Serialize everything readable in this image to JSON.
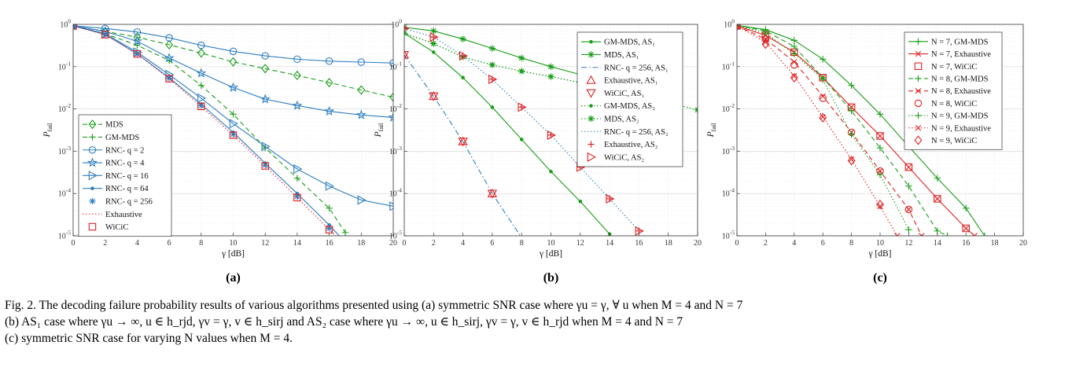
{
  "chart_data": [
    {
      "type": "line",
      "panel_label": "(a)",
      "xlabel": "γ [dB]",
      "ylabel": "P_fail",
      "xlim": [
        0,
        20
      ],
      "ylim": [
        1e-05,
        1
      ],
      "yscale": "log",
      "grid": true,
      "legend_position": "bottom-left",
      "xticks": [
        "0",
        "2",
        "4",
        "6",
        "8",
        "10",
        "12",
        "14",
        "16",
        "18",
        "20"
      ],
      "yticks": [
        "10^0",
        "10^-1",
        "10^-2",
        "10^-3",
        "10^-4",
        "10^-5"
      ],
      "series": [
        {
          "name": "MDS",
          "color": "#1a9e1a",
          "dash": "dashed",
          "marker": "diamond",
          "x": [
            0,
            2,
            4,
            6,
            8,
            10,
            12,
            14,
            16,
            18,
            20
          ],
          "y": [
            0.92,
            0.68,
            0.5,
            0.33,
            0.21,
            0.13,
            0.09,
            0.062,
            0.042,
            0.028,
            0.019
          ]
        },
        {
          "name": "GM-MDS",
          "color": "#1a9e1a",
          "dash": "dashed",
          "marker": "plus",
          "x": [
            0,
            2,
            4,
            6,
            8,
            10,
            12,
            14,
            16,
            17
          ],
          "y": [
            0.92,
            0.6,
            0.32,
            0.14,
            0.036,
            0.0075,
            0.0012,
            0.00023,
            4.5e-05,
            1.2e-05
          ]
        },
        {
          "name": "RNC- q = 2",
          "color": "#2f7fc1",
          "dash": "solid",
          "marker": "circle",
          "x": [
            0,
            2,
            4,
            6,
            8,
            10,
            12,
            14,
            16,
            18,
            20
          ],
          "y": [
            0.92,
            0.8,
            0.66,
            0.48,
            0.32,
            0.23,
            0.18,
            0.15,
            0.135,
            0.128,
            0.122
          ]
        },
        {
          "name": "RNC- q = 4",
          "color": "#2f7fc1",
          "dash": "solid",
          "marker": "star",
          "x": [
            0,
            2,
            4,
            6,
            8,
            10,
            12,
            14,
            16,
            18,
            20
          ],
          "y": [
            0.92,
            0.68,
            0.4,
            0.16,
            0.07,
            0.032,
            0.017,
            0.012,
            0.0088,
            0.0072,
            0.0063
          ]
        },
        {
          "name": "RNC- q = 16",
          "color": "#2f7fc1",
          "dash": "solid",
          "marker": "triangle-right",
          "x": [
            0,
            2,
            4,
            6,
            8,
            10,
            12,
            14,
            16,
            18,
            20
          ],
          "y": [
            0.92,
            0.6,
            0.22,
            0.065,
            0.018,
            0.0045,
            0.0013,
            0.00038,
            0.00015,
            7e-05,
            5e-05
          ]
        },
        {
          "name": "RNC- q = 64",
          "color": "#2f7fc1",
          "dash": "solid",
          "marker": "dot",
          "x": [
            0,
            2,
            4,
            6,
            8,
            10,
            12,
            14,
            16,
            17
          ],
          "y": [
            0.92,
            0.58,
            0.2,
            0.055,
            0.013,
            0.0028,
            0.00052,
            0.0001,
            1.8e-05,
            7e-06
          ]
        },
        {
          "name": "RNC- q = 256",
          "color": "#2f7fc1",
          "dash": "none",
          "marker": "asterisk",
          "x": [
            0,
            2,
            4,
            6,
            8,
            10,
            12,
            14,
            16
          ],
          "y": [
            0.92,
            0.57,
            0.2,
            0.053,
            0.012,
            0.0025,
            0.00047,
            8.5e-05,
            1.5e-05
          ]
        },
        {
          "name": "Exhaustive",
          "color": "#e02020",
          "dash": "dotted",
          "marker": "none",
          "x": [
            0,
            2,
            4,
            6,
            8,
            10,
            12,
            14,
            16,
            17
          ],
          "y": [
            0.92,
            0.57,
            0.2,
            0.052,
            0.0115,
            0.0024,
            0.00045,
            8e-05,
            1.4e-05,
            6e-06
          ]
        },
        {
          "name": "WiCiC",
          "color": "#e02020",
          "dash": "none",
          "marker": "square",
          "x": [
            0,
            2,
            4,
            6,
            8,
            10,
            12,
            14,
            16
          ],
          "y": [
            0.92,
            0.57,
            0.2,
            0.052,
            0.0115,
            0.0024,
            0.00045,
            8e-05,
            1.4e-05
          ]
        }
      ]
    },
    {
      "type": "line",
      "panel_label": "(b)",
      "xlabel": "γ [dB]",
      "ylabel": "P_fail",
      "xlim": [
        0,
        20
      ],
      "ylim": [
        1e-05,
        1
      ],
      "yscale": "log",
      "grid": true,
      "legend_position": "top-right",
      "xticks": [
        "0",
        "2",
        "4",
        "6",
        "8",
        "10",
        "12",
        "14",
        "16",
        "18",
        "20"
      ],
      "yticks": [
        "10^0",
        "10^-1",
        "10^-2",
        "10^-3",
        "10^-4",
        "10^-5"
      ],
      "series": [
        {
          "name": "GM-MDS, AS₁",
          "color": "#1a9e1a",
          "dash": "solid",
          "marker": "dot",
          "x": [
            0,
            2,
            4,
            6,
            8,
            10,
            12,
            14
          ],
          "y": [
            0.62,
            0.22,
            0.055,
            0.011,
            0.0019,
            0.00033,
            6.5e-05,
            1.1e-05
          ]
        },
        {
          "name": "MDS, AS₁",
          "color": "#1a9e1a",
          "dash": "solid",
          "marker": "asterisk",
          "x": [
            0,
            2,
            4,
            6,
            8,
            10,
            12,
            14,
            16
          ],
          "y": [
            0.85,
            0.7,
            0.45,
            0.27,
            0.16,
            0.1,
            0.065,
            0.045,
            0.032
          ]
        },
        {
          "name": "RNC- q = 256, AS₁",
          "color": "#2f7fc1",
          "dash": "dashdot",
          "marker": "none",
          "x": [
            0,
            2,
            4,
            6,
            7,
            8
          ],
          "y": [
            0.19,
            0.02,
            0.0017,
            0.0001,
            3e-05,
            9e-06
          ]
        },
        {
          "name": "Exhaustive, AS₁",
          "color": "#e02020",
          "dash": "none",
          "marker": "triangle-up",
          "x": [
            0,
            2,
            4,
            6
          ],
          "y": [
            0.19,
            0.02,
            0.0017,
            0.0001
          ]
        },
        {
          "name": "WiCiC, AS₁",
          "color": "#e02020",
          "dash": "none",
          "marker": "triangle-down",
          "x": [
            0,
            2,
            4,
            6
          ],
          "y": [
            0.19,
            0.02,
            0.0017,
            0.0001
          ]
        },
        {
          "name": "GM-MDS, AS₂",
          "color": "#1a9e1a",
          "dash": "dotted",
          "marker": "dot",
          "x": [
            0,
            2,
            4,
            6,
            8,
            10,
            12,
            14,
            16,
            18,
            20
          ],
          "y": [
            0.62,
            0.35,
            0.17,
            0.11,
            0.078,
            0.058,
            0.042,
            0.03,
            0.021,
            0.014,
            0.0095
          ]
        },
        {
          "name": "MDS, AS₂",
          "color": "#1a9e1a",
          "dash": "dotted",
          "marker": "asterisk",
          "x": [
            0,
            2,
            4,
            6,
            8,
            10,
            12,
            14,
            16,
            18,
            20
          ],
          "y": [
            0.62,
            0.35,
            0.17,
            0.11,
            0.078,
            0.058,
            0.042,
            0.03,
            0.021,
            0.014,
            0.0095
          ]
        },
        {
          "name": "RNC- q = 256, AS₂",
          "color": "#2f7fc1",
          "dash": "dotted",
          "marker": "none",
          "x": [
            0,
            2,
            4,
            6,
            8,
            10,
            12,
            14,
            16
          ],
          "y": [
            0.8,
            0.5,
            0.18,
            0.05,
            0.011,
            0.0024,
            0.00042,
            7.5e-05,
            1.3e-05
          ]
        },
        {
          "name": "Exhaustive, AS₂",
          "color": "#e02020",
          "dash": "none",
          "marker": "plus",
          "x": [
            0,
            2,
            4,
            6,
            8,
            10,
            12,
            14,
            16
          ],
          "y": [
            0.8,
            0.5,
            0.18,
            0.05,
            0.011,
            0.0024,
            0.00042,
            7.5e-05,
            1.3e-05
          ]
        },
        {
          "name": "WiCiC, AS₂",
          "color": "#e02020",
          "dash": "none",
          "marker": "triangle-right",
          "x": [
            0,
            2,
            4,
            6,
            8,
            10,
            12,
            14,
            16
          ],
          "y": [
            0.8,
            0.5,
            0.18,
            0.05,
            0.011,
            0.0024,
            0.00042,
            7.5e-05,
            1.3e-05
          ]
        }
      ]
    },
    {
      "type": "line",
      "panel_label": "(c)",
      "xlabel": "γ [dB]",
      "ylabel": "P_fail",
      "xlim": [
        0,
        20
      ],
      "ylim": [
        1e-05,
        1
      ],
      "yscale": "log",
      "grid": true,
      "legend_position": "top-right",
      "xticks": [
        "0",
        "2",
        "4",
        "6",
        "8",
        "10",
        "12",
        "14",
        "16",
        "18",
        "20"
      ],
      "yticks": [
        "10^0",
        "10^-1",
        "10^-2",
        "10^-3",
        "10^-4",
        "10^-5"
      ],
      "series": [
        {
          "name": "N = 7, GM-MDS",
          "color": "#1a9e1a",
          "dash": "solid",
          "marker": "plus",
          "x": [
            0,
            2,
            4,
            6,
            8,
            10,
            12,
            14,
            16,
            17.3
          ],
          "y": [
            0.95,
            0.75,
            0.42,
            0.15,
            0.036,
            0.0075,
            0.0013,
            0.00023,
            4.5e-05,
            1e-05
          ]
        },
        {
          "name": "N = 7, Exhaustive",
          "color": "#e02020",
          "dash": "solid",
          "marker": "cross",
          "x": [
            0,
            2,
            4,
            6,
            8,
            10,
            12,
            14,
            16,
            16.6
          ],
          "y": [
            0.92,
            0.55,
            0.22,
            0.055,
            0.011,
            0.0023,
            0.00042,
            7.5e-05,
            1.5e-05,
            1e-05
          ]
        },
        {
          "name": "N = 7, WiCiC",
          "color": "#e02020",
          "dash": "none",
          "marker": "square",
          "x": [
            0,
            2,
            4,
            6,
            8,
            10,
            12,
            14,
            16
          ],
          "y": [
            0.92,
            0.55,
            0.22,
            0.055,
            0.011,
            0.0023,
            0.00042,
            7.5e-05,
            1.5e-05
          ]
        },
        {
          "name": "N = 8, GM-MDS",
          "color": "#1a9e1a",
          "dash": "dashed",
          "marker": "plus",
          "x": [
            0,
            2,
            4,
            6,
            8,
            10,
            12,
            14,
            14.7
          ],
          "y": [
            0.95,
            0.7,
            0.3,
            0.055,
            0.009,
            0.0012,
            0.00015,
            1.3e-05,
            1e-05
          ]
        },
        {
          "name": "N = 8, Exhaustive",
          "color": "#e02020",
          "dash": "dashed",
          "marker": "cross",
          "x": [
            0,
            2,
            4,
            6,
            8,
            10,
            12,
            12.9
          ],
          "y": [
            0.92,
            0.45,
            0.13,
            0.02,
            0.0028,
            0.00034,
            4.2e-05,
            1e-05
          ]
        },
        {
          "name": "N = 8, WiCiC",
          "color": "#e02020",
          "dash": "none",
          "marker": "circle",
          "x": [
            0,
            2,
            4,
            6,
            8,
            10,
            12
          ],
          "y": [
            0.92,
            0.45,
            0.11,
            0.018,
            0.0028,
            0.00034,
            4.2e-05
          ]
        },
        {
          "name": "N = 9, GM-MDS",
          "color": "#1a9e1a",
          "dash": "dotted",
          "marker": "plus",
          "x": [
            0,
            2,
            4,
            6,
            8,
            10,
            12
          ],
          "y": [
            0.95,
            0.62,
            0.2,
            0.05,
            0.0025,
            0.00028,
            1.4e-05
          ]
        },
        {
          "name": "N = 9, Exhaustive",
          "color": "#e02020",
          "dash": "dotted",
          "marker": "cross",
          "x": [
            0,
            2,
            4,
            6,
            8,
            10,
            11.2
          ],
          "y": [
            0.92,
            0.38,
            0.06,
            0.0065,
            0.00065,
            5e-05,
            1e-05
          ]
        },
        {
          "name": "N = 9, WiCiC",
          "color": "#e02020",
          "dash": "none",
          "marker": "diamond",
          "x": [
            0,
            2,
            4,
            6,
            8,
            10
          ],
          "y": [
            0.92,
            0.34,
            0.055,
            0.0062,
            0.0006,
            5.5e-05
          ]
        }
      ]
    }
  ],
  "caption": {
    "line1": "Fig. 2.   The decoding failure probability results of various algorithms presented using (a) symmetric SNR case where γu = γ, ∀ u when M = 4 and N = 7",
    "line2": "(b) AS₁ case where γu → ∞, u ∈ h_rjd, γv = γ, v ∈ h_sirj and AS₂ case where γu → ∞, u ∈ h_sirj, γv = γ, v ∈ h_rjd when M = 4 and N = 7",
    "line3": "(c) symmetric SNR case for varying N values when M = 4."
  }
}
